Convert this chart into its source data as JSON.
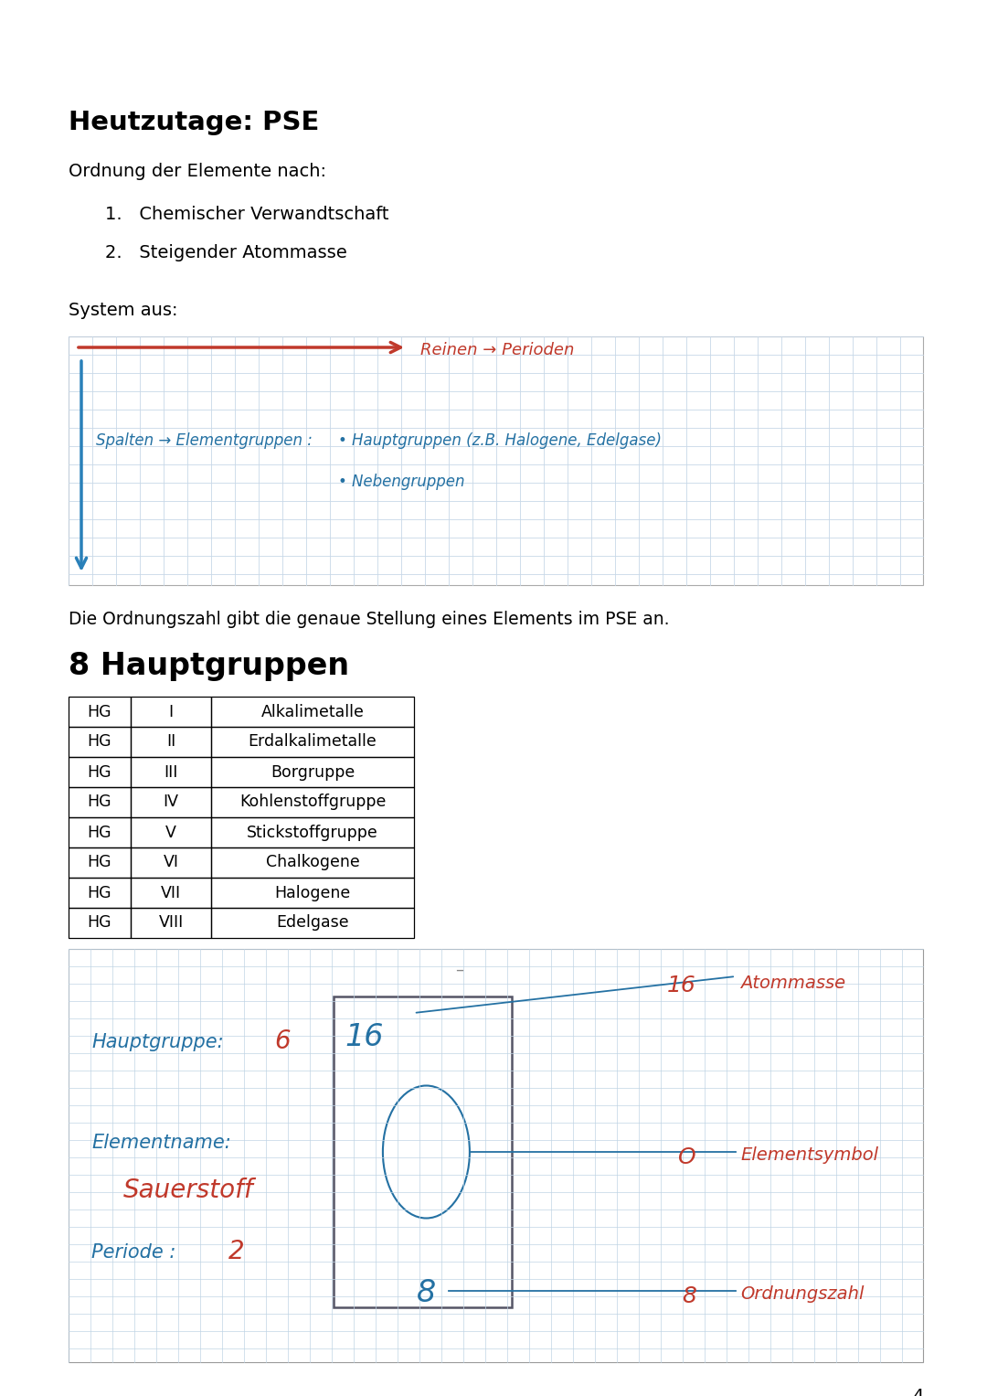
{
  "bg_color": "#ffffff",
  "page_number": "4",
  "section1_title": "Heutzutage: PSE",
  "section1_subtitle": "Ordnung der Elemente nach:",
  "section1_list": [
    "Chemischer Verwandtschaft",
    "Steigender Atommasse"
  ],
  "system_aus": "System aus:",
  "grid_color": "#c8d8e8",
  "arrow_h_color": "#c0392b",
  "arrow_v_color": "#2980b9",
  "reihen_text": "Reinen → Perioden",
  "spalten_text": "Spalten → Elementgruppen :",
  "hauptgruppen_text": "• Hauptgruppen (z.B. Halogene, Edelgase)",
  "nebengruppen_text": "• Nebengruppen",
  "ordnung_text": "Die Ordnungszahl gibt die genaue Stellung eines Elements im PSE an.",
  "section2_title": "8 Hauptgruppen",
  "table_rows": [
    [
      "HG",
      "I",
      "Alkalimetalle"
    ],
    [
      "HG",
      "II",
      "Erdalkalimetalle"
    ],
    [
      "HG",
      "III",
      "Borgruppe"
    ],
    [
      "HG",
      "IV",
      "Kohlenstoffgruppe"
    ],
    [
      "HG",
      "V",
      "Stickstoffgruppe"
    ],
    [
      "HG",
      "VI",
      "Chalkogene"
    ],
    [
      "HG",
      "VII",
      "Halogene"
    ],
    [
      "HG",
      "VIII",
      "Edelgase"
    ]
  ],
  "element_diagram": {
    "hauptgruppe_label": "Hauptgruppe:",
    "hauptgruppe_val": "6",
    "elementname_label": "Elementname:",
    "elementname_val": "Sauerstoff",
    "periode_label": "Periode :",
    "periode_val": "2",
    "atommasse_val": "16",
    "atommasse_label": "Atommasse",
    "symbol": "O",
    "symbol_label": "Elementsymbol",
    "ordnungszahl_val": "8",
    "ordnungszahl_label": "Ordnungszahl",
    "box_number_top": "16",
    "box_number_bottom": "8"
  },
  "handwriting_color_blue": "#2471a3",
  "handwriting_color_red": "#c0392b"
}
